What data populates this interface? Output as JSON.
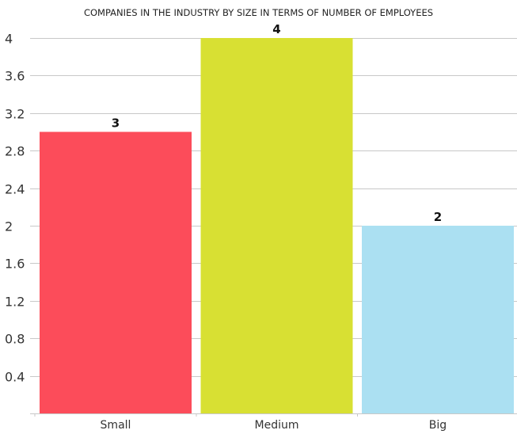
{
  "chart_data": {
    "type": "bar",
    "title": "COMPANIES IN THE INDUSTRY BY SIZE IN TERMS OF NUMBER OF EMPLOYEES",
    "xlabel": "",
    "ylabel": "",
    "categories": [
      "Small",
      "Medium",
      "Big"
    ],
    "values": [
      3,
      4,
      2
    ],
    "data_labels": [
      "3",
      "4",
      "2"
    ],
    "bar_colors": [
      "#fc4c5a",
      "#d8e033",
      "#abe0f2"
    ],
    "ylim": [
      0,
      4
    ],
    "yticks": [
      0.4,
      0.8,
      1.2,
      1.6,
      2,
      2.4,
      2.8,
      3.2,
      3.6,
      4
    ],
    "ytick_labels": [
      "0.4",
      "0.8",
      "1.2",
      "1.6",
      "2",
      "2.4",
      "2.8",
      "3.2",
      "3.6",
      "4"
    ],
    "grid": true,
    "legend": "none"
  }
}
